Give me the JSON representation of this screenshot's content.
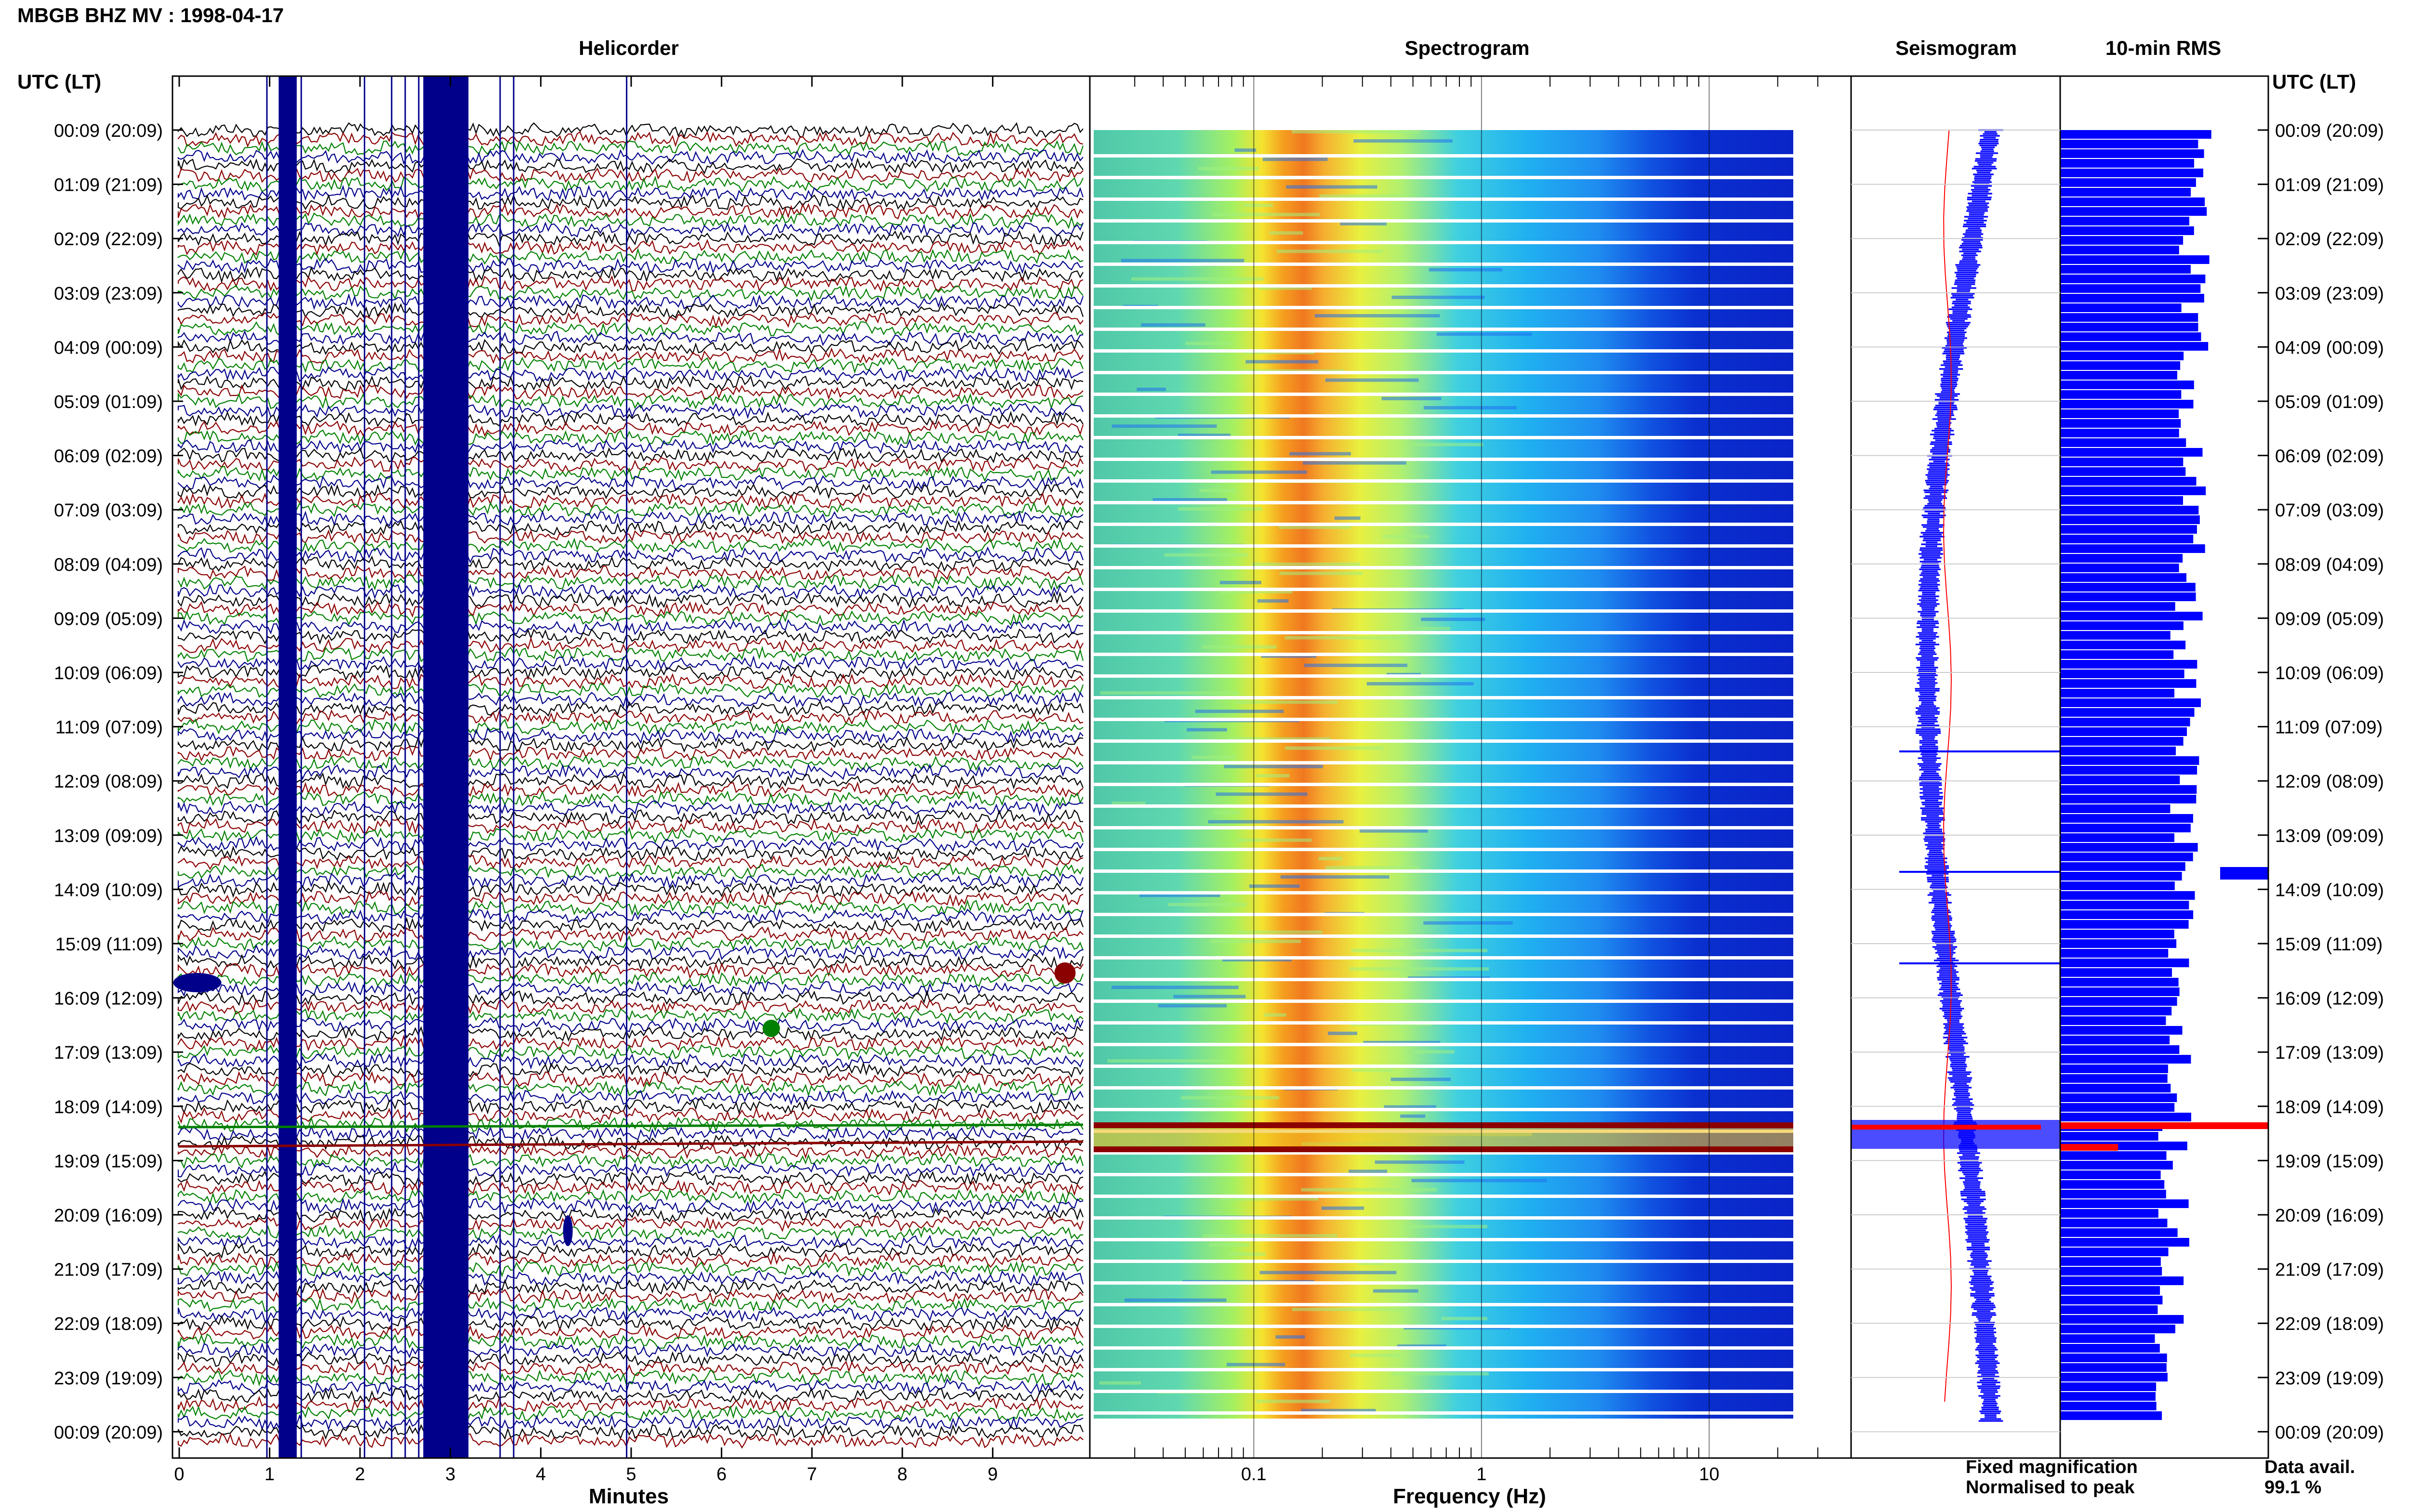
{
  "header": {
    "title": "MBGB BHZ MV : 1998-04-17"
  },
  "legend": {
    "fixed": "Fixed magnification",
    "normalised": "Normalised to peak",
    "fixed_color": "#0000ff",
    "normalised_color": "#ff0000"
  },
  "availability": {
    "label": "Data avail.",
    "value": "99.1 %"
  },
  "chart_data": [
    {
      "type": "line",
      "title": "Helicorder",
      "xlabel": "Minutes",
      "ylabel": "UTC (LT)",
      "xlim": [
        0,
        10
      ],
      "x_ticks": [
        "0",
        "1",
        "2",
        "3",
        "4",
        "5",
        "6",
        "7",
        "8",
        "9"
      ],
      "y_ticks": [
        "00:09 (20:09)",
        "01:09 (21:09)",
        "02:09 (22:09)",
        "03:09 (23:09)",
        "04:09 (00:09)",
        "05:09 (01:09)",
        "06:09 (02:09)",
        "07:09 (03:09)",
        "08:09 (04:09)",
        "09:09 (05:09)",
        "10:09 (06:09)",
        "11:09 (07:09)",
        "12:09 (08:09)",
        "13:09 (09:09)",
        "14:09 (10:09)",
        "15:09 (11:09)",
        "16:09 (12:09)",
        "17:09 (13:09)",
        "18:09 (14:09)",
        "19:09 (15:09)",
        "20:09 (16:09)",
        "21:09 (17:09)",
        "22:09 (18:09)",
        "23:09 (19:09)",
        "00:09 (20:09)"
      ],
      "trace_colors": [
        "#000000",
        "#8b0000",
        "#008000",
        "#00008b"
      ],
      "saturated_bands_minutes": [
        [
          1.1,
          1.3
        ],
        [
          2.7,
          3.2
        ]
      ]
    },
    {
      "type": "heatmap",
      "title": "Spectrogram",
      "xlabel": "Frequency (Hz)",
      "x_scale": "log",
      "xlim": [
        0.02,
        40
      ],
      "x_ticks": [
        "0.1",
        "1",
        "10"
      ],
      "colormap": "jet",
      "peak_band_hz": [
        0.15,
        0.4
      ]
    },
    {
      "type": "line",
      "title": "Seismogram",
      "series": [
        {
          "name": "Fixed magnification",
          "color": "#0000ff"
        },
        {
          "name": "Normalised to peak",
          "color": "#ff0000"
        }
      ]
    },
    {
      "type": "bar",
      "title": "10-min RMS",
      "ylabel": "UTC (LT)",
      "bar_color": "#0000ff",
      "highlight_color": "#ff0000",
      "y_ticks": [
        "00:09 (20:09)",
        "01:09 (21:09)",
        "02:09 (22:09)",
        "03:09 (23:09)",
        "04:09 (00:09)",
        "05:09 (01:09)",
        "06:09 (02:09)",
        "07:09 (03:09)",
        "08:09 (04:09)",
        "09:09 (05:09)",
        "10:09 (06:09)",
        "11:09 (07:09)",
        "12:09 (08:09)",
        "13:09 (09:09)",
        "14:09 (10:09)",
        "15:09 (11:09)",
        "16:09 (12:09)",
        "17:09 (13:09)",
        "18:09 (14:09)",
        "19:09 (15:09)",
        "20:09 (16:09)",
        "21:09 (17:09)",
        "22:09 (18:09)",
        "23:09 (19:09)",
        "00:09 (20:09)"
      ]
    }
  ]
}
